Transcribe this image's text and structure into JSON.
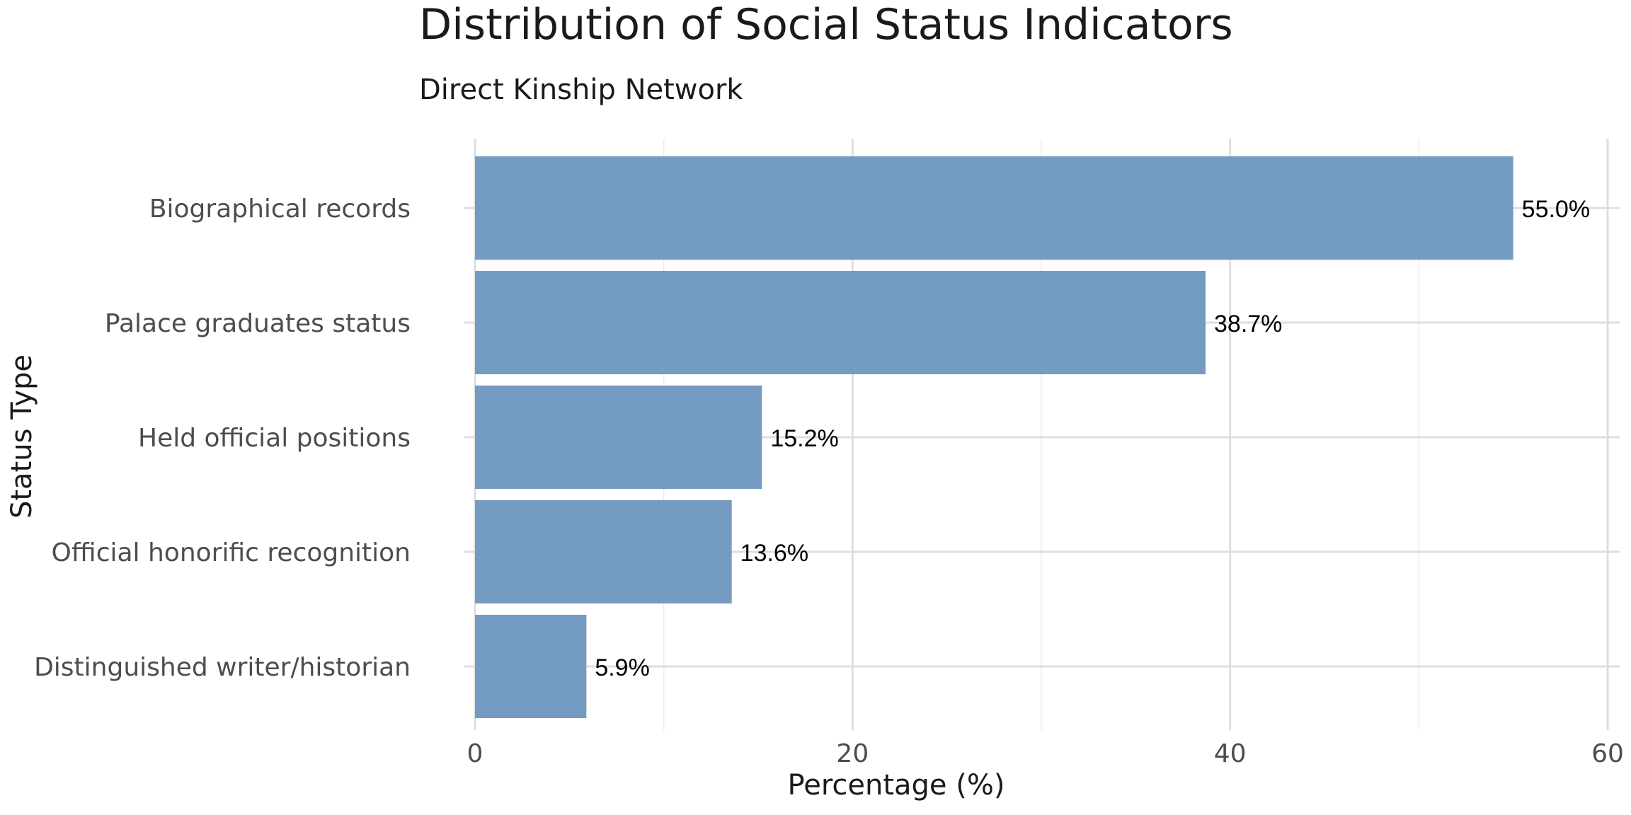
{
  "chart_data": {
    "type": "bar",
    "orientation": "horizontal",
    "title": "Distribution of Social Status Indicators",
    "subtitle": "Direct Kinship Network",
    "xlabel": "Percentage (%)",
    "ylabel": "Status Type",
    "categories": [
      "Biographical records",
      "Palace graduates status",
      "Held official positions",
      "Official honorific recognition",
      "Distinguished writer/historian"
    ],
    "values": [
      55.0,
      38.7,
      15.2,
      13.6,
      5.9
    ],
    "data_labels": [
      "55.0%",
      "38.7%",
      "15.2%",
      "13.6%",
      "5.9%"
    ],
    "xlim": [
      0,
      60
    ],
    "xticks": [
      0,
      20,
      40,
      60
    ],
    "xtick_labels": [
      "0",
      "20",
      "40",
      "60"
    ],
    "grid": true,
    "legend": "none",
    "bar_color": "#7199C0"
  }
}
